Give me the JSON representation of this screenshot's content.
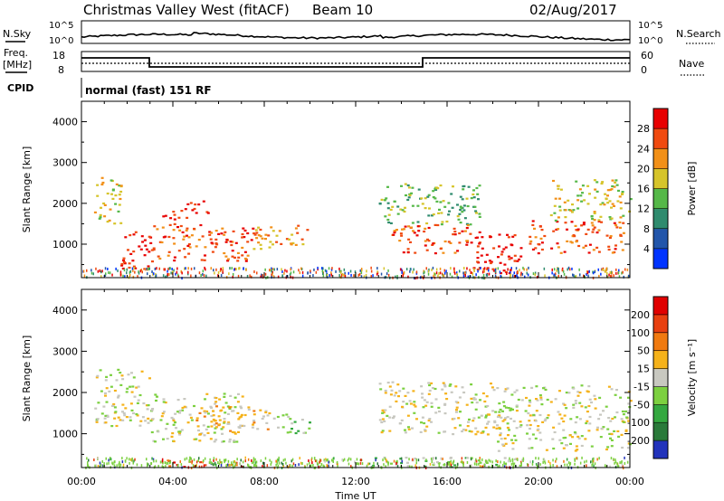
{
  "header": {
    "station": "Christmas Valley West (fitACF)",
    "beam": "Beam 10",
    "date": "02/Aug/2017"
  },
  "strip": {
    "nsky_label": "N.Sky",
    "nsearch_label": "N.Search",
    "noise_left_top": "10^5",
    "noise_left_bottom": "10^0",
    "noise_right_top": "10^5",
    "noise_right_bottom": "10^0",
    "freq_label": "Freq.",
    "freq_unit": "[MHz]",
    "freq_ticks": [
      "18",
      "8"
    ],
    "nave_label": "Nave",
    "nave_ticks": [
      "60",
      "0"
    ],
    "cpid_label": "CPID",
    "cpid_text": "normal (fast) 151 RF"
  },
  "chart_data": [
    {
      "type": "heatmap",
      "name": "power",
      "ylabel": "Slant Range [km]",
      "yticks": [
        "4000",
        "3000",
        "2000",
        "1000"
      ],
      "ylim": [
        180,
        4500
      ],
      "colorbar_label": "Power [dB]",
      "colorbar_ticks": [
        "28",
        "24",
        "20",
        "16",
        "12",
        "8",
        "4"
      ],
      "colors": [
        "#0033ff",
        "#2255aa",
        "#2f8b6e",
        "#55b848",
        "#d6c42a",
        "#f29018",
        "#f04a10",
        "#e80000"
      ],
      "regions": [
        {
          "t0": 0.5,
          "t1": 1.7,
          "r0": 1500,
          "r1": 2700,
          "level": 4
        },
        {
          "t0": 1.7,
          "t1": 3.0,
          "r0": 400,
          "r1": 1400,
          "level": 7
        },
        {
          "t0": 3.5,
          "t1": 4.6,
          "r0": 1450,
          "r1": 1900,
          "level": 6
        },
        {
          "t0": 4.6,
          "t1": 5.6,
          "r0": 1700,
          "r1": 2100,
          "level": 7
        },
        {
          "t0": 3.0,
          "t1": 7.5,
          "r0": 600,
          "r1": 1500,
          "level": 6
        },
        {
          "t0": 7.5,
          "t1": 10.0,
          "r0": 900,
          "r1": 1500,
          "level": 5
        },
        {
          "t0": 13.0,
          "t1": 17.5,
          "r0": 1500,
          "r1": 2500,
          "level": 3
        },
        {
          "t0": 13.5,
          "t1": 17.5,
          "r0": 800,
          "r1": 1500,
          "level": 6
        },
        {
          "t0": 17.0,
          "t1": 19.2,
          "r0": 300,
          "r1": 1300,
          "level": 7
        },
        {
          "t0": 19.5,
          "t1": 23.8,
          "r0": 800,
          "r1": 1600,
          "level": 6
        },
        {
          "t0": 20.5,
          "t1": 24.0,
          "r0": 1600,
          "r1": 2600,
          "level": 4
        }
      ]
    },
    {
      "type": "heatmap",
      "name": "velocity",
      "ylabel": "Slant Range [km]",
      "yticks": [
        "4000",
        "3000",
        "2000",
        "1000"
      ],
      "ylim": [
        180,
        4500
      ],
      "colorbar_label": "Velocity [m s⁻¹]",
      "colorbar_ticks": [
        "200",
        "100",
        "50",
        "15",
        "-15",
        "-50",
        "-100",
        "-200"
      ],
      "colors": [
        "#2233bb",
        "#2a7a3a",
        "#34a840",
        "#7cd040",
        "#c8c8c0",
        "#f5b21a",
        "#f07a10",
        "#e84010",
        "#e00000"
      ],
      "regions": [
        {
          "t0": 0.5,
          "t1": 3.0,
          "r0": 1200,
          "r1": 2600,
          "level": 4
        },
        {
          "t0": 3.0,
          "t1": 7.0,
          "r0": 800,
          "r1": 2000,
          "level": 4
        },
        {
          "t0": 5.0,
          "t1": 8.5,
          "r0": 1000,
          "r1": 1700,
          "level": 5
        },
        {
          "t0": 8.5,
          "t1": 10.0,
          "r0": 1000,
          "r1": 1500,
          "level": 3
        },
        {
          "t0": 13.0,
          "t1": 18.0,
          "r0": 1000,
          "r1": 2300,
          "level": 4
        },
        {
          "t0": 18.0,
          "t1": 24.0,
          "r0": 600,
          "r1": 2200,
          "level": 4
        },
        {
          "t0": 12.0,
          "t1": 19.5,
          "r0": 200,
          "r1": 450,
          "level": 3
        },
        {
          "t0": 3.5,
          "t1": 7.0,
          "r0": 200,
          "r1": 380,
          "level": 7
        }
      ]
    }
  ],
  "xaxis": {
    "ticks": [
      "00:00",
      "04:00",
      "08:00",
      "12:00",
      "16:00",
      "20:00",
      "00:00"
    ],
    "label": "Time UT"
  }
}
